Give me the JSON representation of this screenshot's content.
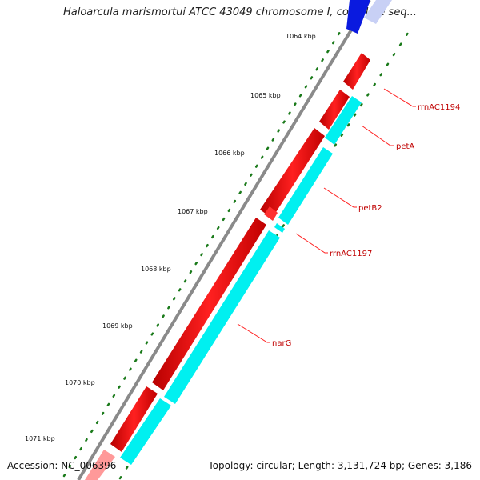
{
  "title": "Haloarcula marismortui ATCC 43049 chromosome I, complete seq...",
  "footer": {
    "accession": "Accession: NC_006396",
    "topology": "Topology: circular; Length: 3,131,724 bp; Genes: 3,186"
  },
  "ticks": [
    "1064 kbp",
    "1065 kbp",
    "1066 kbp",
    "1067 kbp",
    "1068 kbp",
    "1069 kbp",
    "1070 kbp",
    "1071 kbp"
  ],
  "genes": [
    {
      "name": "rrnAC1194",
      "strand": "forward"
    },
    {
      "name": "petA",
      "strand": "reverse"
    },
    {
      "name": "petB2",
      "strand": "reverse"
    },
    {
      "name": "rrnAC1197",
      "strand": "reverse"
    },
    {
      "name": "narG",
      "strand": "reverse"
    }
  ],
  "colors": {
    "backbone": "#888888",
    "forward_cds": "#ff0000",
    "reverse_cds": "#00ffff",
    "other_feature": "#0000ff",
    "ticks": "#1a7a1a",
    "label_text": "#c00000"
  }
}
